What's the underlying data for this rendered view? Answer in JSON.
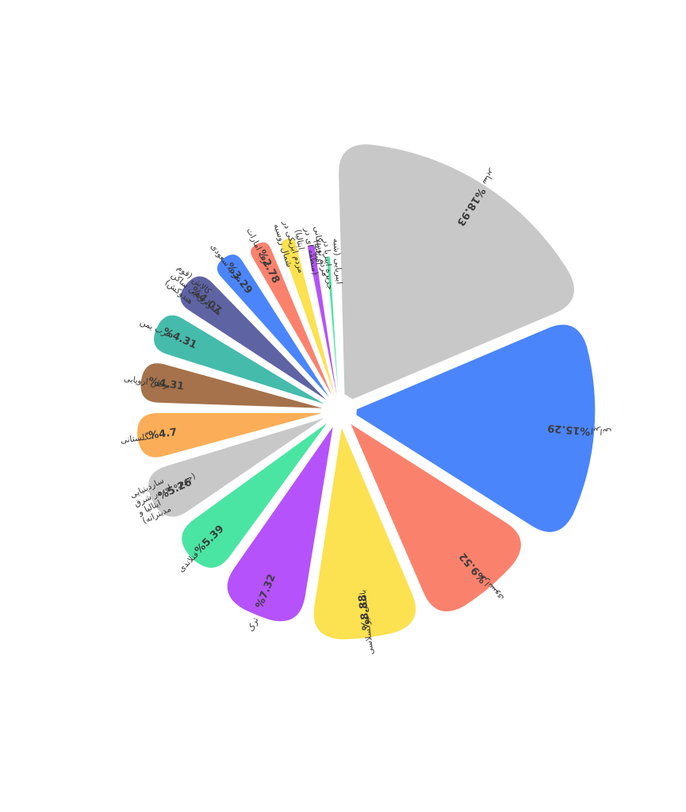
{
  "chart_data": {
    "type": "pie",
    "title": "",
    "legend": "none",
    "slices": [
      {
        "label": "سایر",
        "value": 18.93,
        "display": "%18.93",
        "color": "#c8c8c8"
      },
      {
        "label": "ایرانی",
        "value": 15.29,
        "display": "%15.29",
        "color": "#4b85fb"
      },
      {
        "label": "فرانسوی",
        "value": 9.52,
        "display": "%9.52",
        "color": "#fa826d"
      },
      {
        "label": "باسکی نیوکسلاسی",
        "value": 8.88,
        "display": "%8.88",
        "color": "#fce150"
      },
      {
        "label": "ترک",
        "value": 7.32,
        "display": "%7.32",
        "color": "#b552fc"
      },
      {
        "label": "فنلاندی",
        "value": 5.39,
        "display": "%5.39",
        "color": "#4ae5a2"
      },
      {
        "label": "ساردینیایی (جزیره ای در شرق ایتالیا و مدیترانه)",
        "value": 5.26,
        "display": "%5.26",
        "color": "#c8c8c8"
      },
      {
        "label": "انگلستانی",
        "value": 4.7,
        "display": "%4.7",
        "color": "#fbae57"
      },
      {
        "label": "یوطن اروپایی",
        "value": 4.31,
        "display": "%4.31",
        "color": "#a5724b"
      },
      {
        "label": "عرب یمن",
        "value": 4.31,
        "display": "%4.31",
        "color": "#45bbab"
      },
      {
        "label": "کالاش (قوم هندواروپایی ساکن هندوکش)",
        "value": 4.07,
        "display": "%4.07",
        "color": "#5e63a4"
      },
      {
        "label": "عرب سعودی",
        "value": 3.29,
        "display": "%3.29",
        "color": "#4b85fb"
      },
      {
        "label": "عرب امارات",
        "value": 2.78,
        "display": "%2.78",
        "color": "#fa826d"
      },
      {
        "label": "مردم ایزیکی در شمال روسیه",
        "value": 2.3,
        "display": "",
        "color": "#fce150"
      },
      {
        "label": "مردم توسکانی (منطقه ای در ایتالیا)",
        "value": 1.7,
        "display": "",
        "color": "#b552fc"
      },
      {
        "label": "ایبریایی (شبه جزیره ایبریا در اسپانیا)",
        "value": 1.45,
        "display": "",
        "color": "#4ae5a2"
      }
    ]
  }
}
